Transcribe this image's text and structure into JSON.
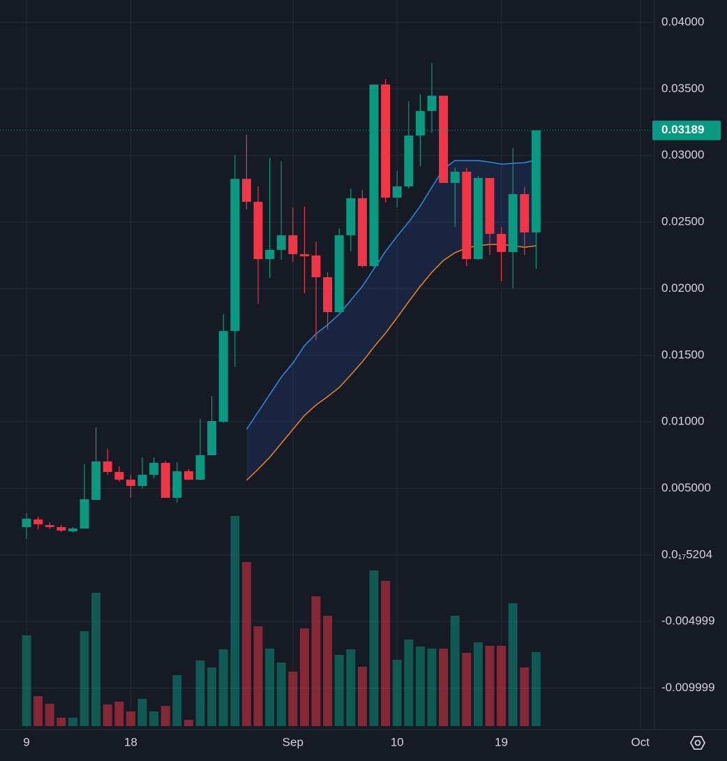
{
  "chart_data": {
    "type": "candlestick",
    "up_color": "#089981",
    "down_color": "#f23645",
    "open": [
      0.00209,
      0.00266,
      0.00224,
      0.00209,
      0.00177,
      0.00198,
      0.00413,
      0.00702,
      0.00623,
      0.00565,
      0.00518,
      0.00602,
      0.00691,
      0.00429,
      0.00628,
      0.00565,
      0.00749,
      0.01,
      0.01682,
      0.02825,
      0.02652,
      0.02222,
      0.02291,
      0.02401,
      0.02259,
      0.02249,
      0.02086,
      0.01824,
      0.02401,
      0.02679,
      0.0217,
      0.03533,
      0.02684,
      0.02768,
      0.0315,
      0.03334,
      0.03449,
      0.02794,
      0.02878,
      0.02222,
      0.02831,
      0.02411,
      0.02275,
      0.0271,
      0.02422
    ],
    "high": [
      0.00314,
      0.00287,
      0.00245,
      0.00224,
      0.00209,
      0.00681,
      0.00959,
      0.00796,
      0.00665,
      0.00602,
      0.00733,
      0.00733,
      0.00707,
      0.00696,
      0.00644,
      0.01022,
      0.01195,
      0.01808,
      0.03004,
      0.03156,
      0.02768,
      0.02983,
      0.02956,
      0.0261,
      0.02616,
      0.02353,
      0.02123,
      0.02453,
      0.02752,
      0.02741,
      0.03533,
      0.03575,
      0.02883,
      0.03407,
      0.0346,
      0.03696,
      0.03449,
      0.02909,
      0.02909,
      0.02846,
      0.02831,
      0.02464,
      0.03056,
      0.02762,
      0.03189
    ],
    "low": [
      0.0012,
      0.00193,
      0.00193,
      0.00172,
      0.00167,
      0.00198,
      0.00413,
      0.00602,
      0.0055,
      0.00429,
      0.00497,
      0.00576,
      0.00429,
      0.00392,
      0.0056,
      0.0056,
      0.00749,
      0.0099,
      0.01415,
      0.02595,
      0.01887,
      0.02081,
      0.02217,
      0.02201,
      0.01965,
      0.01614,
      0.01693,
      0.01819,
      0.0228,
      0.02159,
      0.02159,
      0.02647,
      0.0261,
      0.02752,
      0.0292,
      0.03171,
      0.02794,
      0.02464,
      0.0217,
      0.02217,
      0.02254,
      0.02055,
      0.02002,
      0.02254,
      0.02149
    ],
    "close": [
      0.00272,
      0.0023,
      0.00209,
      0.00183,
      0.00198,
      0.00418,
      0.00702,
      0.00623,
      0.00565,
      0.00518,
      0.00602,
      0.00691,
      0.00429,
      0.00628,
      0.00565,
      0.00749,
      0.01006,
      0.01682,
      0.02825,
      0.02652,
      0.02222,
      0.02291,
      0.02401,
      0.02259,
      0.02243,
      0.02086,
      0.01824,
      0.02401,
      0.02679,
      0.0217,
      0.03533,
      0.02684,
      0.02768,
      0.0315,
      0.03334,
      0.03449,
      0.02794,
      0.02878,
      0.02222,
      0.02831,
      0.02411,
      0.02275,
      0.0271,
      0.02422,
      0.03189
    ],
    "volume": [
      130,
      43,
      32,
      12,
      12,
      136,
      191,
      31,
      35,
      21,
      39,
      21,
      29,
      73,
      9,
      94,
      84,
      110,
      301,
      235,
      143,
      111,
      91,
      78,
      140,
      186,
      158,
      102,
      110,
      85,
      223,
      208,
      95,
      124,
      114,
      111,
      111,
      158,
      105,
      120,
      115,
      115,
      176,
      84,
      106
    ],
    "bands": [
      {
        "color": "#2e8ee8",
        "values": [
          null,
          null,
          null,
          null,
          null,
          null,
          null,
          null,
          null,
          null,
          null,
          null,
          null,
          null,
          null,
          null,
          null,
          null,
          null,
          0.00943,
          0.01074,
          0.01205,
          0.01336,
          0.01441,
          0.01572,
          0.01661,
          0.01729,
          0.01808,
          0.01913,
          0.02018,
          0.02149,
          0.0228,
          0.02395,
          0.025,
          0.02621,
          0.02762,
          0.02899,
          0.02962,
          0.02962,
          0.02962,
          0.02951,
          0.02935,
          0.02941,
          0.02946,
          0.02967
        ]
      },
      {
        "color": "#f0861f",
        "values": [
          null,
          null,
          null,
          null,
          null,
          null,
          null,
          null,
          null,
          null,
          null,
          null,
          null,
          null,
          null,
          null,
          null,
          null,
          null,
          0.0056,
          0.00644,
          0.00733,
          0.00838,
          0.00943,
          0.01048,
          0.01126,
          0.01189,
          0.01257,
          0.01352,
          0.01451,
          0.01562,
          0.01666,
          0.01782,
          0.01902,
          0.02018,
          0.02123,
          0.02212,
          0.0227,
          0.02306,
          0.02322,
          0.02332,
          0.02332,
          0.02322,
          0.02311,
          0.02322
        ]
      }
    ],
    "band_fill": "#2e62c4",
    "ylim": [
      -0.01312,
      0.04168
    ],
    "yticks": [
      {
        "value": 0.04,
        "label": "0.04000"
      },
      {
        "value": 0.035,
        "label": "0.03500"
      },
      {
        "value": 0.03,
        "label": "0.03000"
      },
      {
        "value": 0.025,
        "label": "0.02500"
      },
      {
        "value": 0.02,
        "label": "0.02000"
      },
      {
        "value": 0.015,
        "label": "0.01500"
      },
      {
        "value": 0.01,
        "label": "0.01000"
      },
      {
        "value": 0.005,
        "label": "0.005000"
      },
      {
        "value": 5.204e-19,
        "label": "0.0₁₇5204"
      },
      {
        "value": -0.004999,
        "label": "-0.004999"
      },
      {
        "value": -0.009999,
        "label": "-0.009999"
      }
    ],
    "xlim": [
      -2.29,
      54.22
    ],
    "xticks": [
      {
        "value": 0,
        "label": "9"
      },
      {
        "value": 9,
        "label": "18"
      },
      {
        "value": 23,
        "label": "Sep"
      },
      {
        "value": 32,
        "label": "10"
      },
      {
        "value": 41,
        "label": "19"
      },
      {
        "value": 53,
        "label": "Oct"
      }
    ],
    "grid": true
  }
}
